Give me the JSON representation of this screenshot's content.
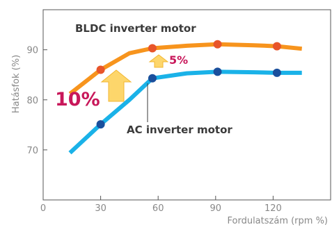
{
  "chart_data": {
    "type": "line",
    "xlabel": "Fordulatszám (rpm %)",
    "ylabel": "Hatásfok (%)",
    "xlim": [
      0,
      150
    ],
    "ylim": [
      60,
      98
    ],
    "xticks": [
      0,
      30,
      60,
      90,
      120
    ],
    "yticks": [
      70,
      80,
      90
    ],
    "grid": false,
    "series": [
      {
        "name": "BLDC inverter motor",
        "color": "#f7941d",
        "marker_color": "#e8552a",
        "line": [
          [
            14,
            81.2
          ],
          [
            30,
            86
          ],
          [
            45,
            89.3
          ],
          [
            57,
            90.3
          ],
          [
            75,
            90.8
          ],
          [
            91,
            91.1
          ],
          [
            110,
            90.9
          ],
          [
            122,
            90.7
          ],
          [
            135,
            90.2
          ]
        ],
        "markers": [
          [
            30,
            86
          ],
          [
            57,
            90.3
          ],
          [
            91,
            91.1
          ],
          [
            122,
            90.7
          ]
        ]
      },
      {
        "name": "AC inverter motor",
        "color": "#1ab2e8",
        "marker_color": "#1a4f9c",
        "line": [
          [
            14,
            69.4
          ],
          [
            30,
            75.1
          ],
          [
            45,
            80.0
          ],
          [
            57,
            84.3
          ],
          [
            75,
            85.3
          ],
          [
            91,
            85.6
          ],
          [
            110,
            85.5
          ],
          [
            122,
            85.4
          ],
          [
            135,
            85.4
          ]
        ],
        "markers": [
          [
            30,
            75.1
          ],
          [
            57,
            84.3
          ],
          [
            91,
            85.6
          ],
          [
            122,
            85.4
          ]
        ]
      }
    ],
    "annotations": [
      {
        "text": "10%",
        "color": "#c8175a"
      },
      {
        "text": "5%",
        "color": "#c8175a"
      }
    ],
    "arrow_color": "#fdd66b"
  }
}
